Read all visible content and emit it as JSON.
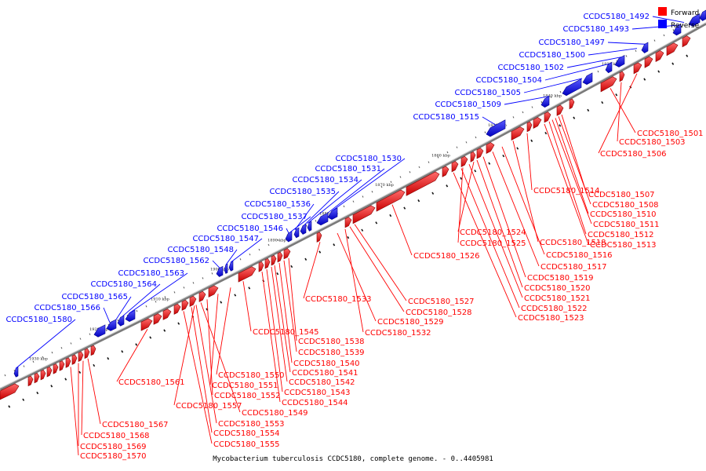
{
  "caption": "Mycobacterium tuberculosis CCDC5180, complete genome. - 0..4405981",
  "colors": {
    "forward": "#ff0000",
    "reverse": "#0000ff",
    "backbone": "#888888"
  },
  "legend": [
    {
      "label": "Forward",
      "color": "#ff0000"
    },
    {
      "label": "Reverse",
      "color": "#0000ff"
    }
  ],
  "scale_ticks": [
    "1830 kbp",
    "1840 kbp",
    "1850 kbp",
    "1860 kbp",
    "1870 kbp",
    "1880 kbp",
    "1890 kbp",
    "1900 kbp",
    "1910 kbp",
    "1920 kbp",
    "1930 kbp"
  ],
  "reverse_genes": [
    "CCDC5180_1492",
    "CCDC5180_1493",
    "CCDC5180_1497",
    "CCDC5180_1500",
    "CCDC5180_1502",
    "CCDC5180_1504",
    "CCDC5180_1505",
    "CCDC5180_1509",
    "CCDC5180_1515",
    "CCDC5180_1530",
    "CCDC5180_1531",
    "CCDC5180_1534",
    "CCDC5180_1535",
    "CCDC5180_1536",
    "CCDC5180_1537",
    "CCDC5180_1546",
    "CCDC5180_1547",
    "CCDC5180_1548",
    "CCDC5180_1562",
    "CCDC5180_1563",
    "CCDC5180_1564",
    "CCDC5180_1565",
    "CCDC5180_1566",
    "CCDC5180_1580"
  ],
  "forward_genes": [
    "CCDC5180_1501",
    "CCDC5180_1503",
    "CCDC5180_1506",
    "CCDC5180_1514",
    "CCDC5180_1507",
    "CCDC5180_1508",
    "CCDC5180_1510",
    "CCDC5180_1511",
    "CCDC5180_1512",
    "CCDC5180_1513",
    "CCDC5180_1518",
    "CCDC5180_1516",
    "CCDC5180_1517",
    "CCDC5180_1524",
    "CCDC5180_1525",
    "CCDC5180_1526",
    "CCDC5180_1519",
    "CCDC5180_1520",
    "CCDC5180_1521",
    "CCDC5180_1522",
    "CCDC5180_1523",
    "CCDC5180_1527",
    "CCDC5180_1528",
    "CCDC5180_1529",
    "CCDC5180_1532",
    "CCDC5180_1533",
    "CCDC5180_1538",
    "CCDC5180_1539",
    "CCDC5180_1540",
    "CCDC5180_1541",
    "CCDC5180_1542",
    "CCDC5180_1543",
    "CCDC5180_1544",
    "CCDC5180_1545",
    "CCDC5180_1550",
    "CCDC5180_1551",
    "CCDC5180_1552",
    "CCDC5180_1549",
    "CCDC5180_1553",
    "CCDC5180_1554",
    "CCDC5180_1555",
    "CCDC5180_1557",
    "CCDC5180_1561",
    "CCDC5180_1567",
    "CCDC5180_1568",
    "CCDC5180_1569",
    "CCDC5180_1570"
  ]
}
